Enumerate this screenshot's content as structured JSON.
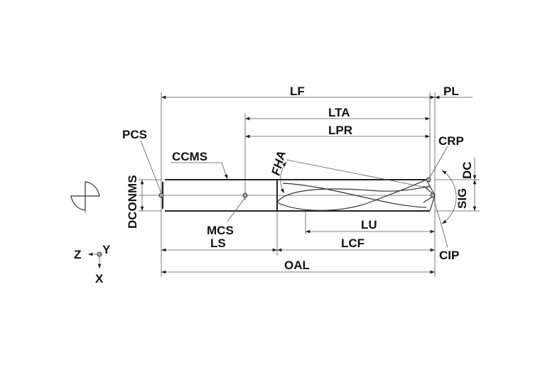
{
  "labels": {
    "lf": "LF",
    "pl": "PL",
    "lta": "LTA",
    "lpr": "LPR",
    "pcs": "PCS",
    "ccms": "CCMS",
    "crp": "CRP",
    "dc": "DC",
    "fha": "FHA",
    "sig": "SIG",
    "dconms": "DCONMS",
    "mcs": "MCS",
    "lu": "LU",
    "ls": "LS",
    "lcf": "LCF",
    "cip": "CIP",
    "oal": "OAL"
  },
  "axes": {
    "z": "Z",
    "y": "Y",
    "x": "X"
  }
}
